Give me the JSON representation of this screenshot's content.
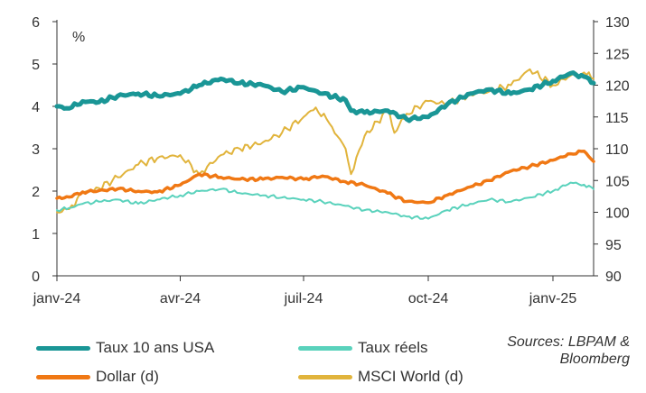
{
  "chart_data": {
    "type": "line",
    "unit_label": "%",
    "x_tick_labels": [
      "janv-24",
      "avr-24",
      "juil-24",
      "oct-24",
      "janv-25"
    ],
    "x_ticks": [
      "2024-01-01",
      "2024-04-01",
      "2024-07-01",
      "2024-10-01",
      "2025-01-01"
    ],
    "x_range": [
      "2024-01-01",
      "2025-01-31"
    ],
    "y_left_ticks": [
      "0",
      "1",
      "2",
      "3",
      "4",
      "5",
      "6"
    ],
    "y_left_range": [
      0,
      6
    ],
    "y_right_ticks": [
      "90",
      "95",
      "100",
      "105",
      "110",
      "115",
      "120",
      "125",
      "130"
    ],
    "y_right_range": [
      90,
      130
    ],
    "grid": false,
    "legend_position": "bottom",
    "series": [
      {
        "name": "Taux 10 ans USA",
        "axis": "left",
        "color": "#1a9696",
        "x": [
          "2024-01-01",
          "2024-01-10",
          "2024-01-20",
          "2024-02-01",
          "2024-02-15",
          "2024-03-01",
          "2024-03-15",
          "2024-04-01",
          "2024-04-15",
          "2024-05-01",
          "2024-05-15",
          "2024-06-01",
          "2024-06-15",
          "2024-07-01",
          "2024-07-15",
          "2024-08-01",
          "2024-08-05",
          "2024-08-15",
          "2024-09-01",
          "2024-09-15",
          "2024-10-01",
          "2024-10-15",
          "2024-11-01",
          "2024-11-15",
          "2024-12-01",
          "2024-12-15",
          "2025-01-01",
          "2025-01-14",
          "2025-01-24",
          "2025-01-31"
        ],
        "values": [
          4.0,
          3.95,
          4.12,
          4.1,
          4.25,
          4.3,
          4.25,
          4.3,
          4.5,
          4.65,
          4.55,
          4.5,
          4.35,
          4.45,
          4.3,
          4.15,
          3.9,
          3.85,
          3.9,
          3.7,
          3.75,
          4.05,
          4.3,
          4.4,
          4.3,
          4.4,
          4.6,
          4.78,
          4.7,
          4.55
        ]
      },
      {
        "name": "Taux réels",
        "axis": "left",
        "color": "#5ad2bc",
        "x": [
          "2024-01-01",
          "2024-01-10",
          "2024-01-20",
          "2024-02-01",
          "2024-02-15",
          "2024-03-01",
          "2024-03-15",
          "2024-04-01",
          "2024-04-15",
          "2024-05-01",
          "2024-05-15",
          "2024-06-01",
          "2024-06-15",
          "2024-07-01",
          "2024-07-15",
          "2024-08-01",
          "2024-08-15",
          "2024-09-01",
          "2024-09-15",
          "2024-10-01",
          "2024-10-15",
          "2024-11-01",
          "2024-11-15",
          "2024-12-01",
          "2024-12-15",
          "2025-01-01",
          "2025-01-14",
          "2025-01-24",
          "2025-01-31"
        ],
        "values": [
          1.55,
          1.6,
          1.7,
          1.75,
          1.8,
          1.7,
          1.8,
          1.9,
          2.0,
          2.05,
          1.95,
          1.9,
          1.85,
          1.8,
          1.75,
          1.65,
          1.55,
          1.5,
          1.4,
          1.35,
          1.55,
          1.7,
          1.8,
          1.75,
          1.85,
          2.0,
          2.2,
          2.15,
          2.05
        ]
      },
      {
        "name": "Dollar (d)",
        "axis": "right",
        "color": "#f07814",
        "x": [
          "2024-01-01",
          "2024-01-10",
          "2024-01-20",
          "2024-02-01",
          "2024-02-15",
          "2024-03-01",
          "2024-03-15",
          "2024-04-01",
          "2024-04-15",
          "2024-05-01",
          "2024-05-15",
          "2024-06-01",
          "2024-06-15",
          "2024-07-01",
          "2024-07-15",
          "2024-08-01",
          "2024-08-15",
          "2024-09-01",
          "2024-09-15",
          "2024-10-01",
          "2024-10-15",
          "2024-11-01",
          "2024-11-15",
          "2024-12-01",
          "2024-12-15",
          "2025-01-01",
          "2025-01-14",
          "2025-01-24",
          "2025-01-31"
        ],
        "values": [
          102.2,
          102.4,
          103.2,
          103.4,
          103.7,
          103.3,
          103.2,
          104.3,
          106.0,
          105.5,
          105.2,
          105.2,
          105.5,
          105.2,
          105.7,
          104.8,
          104.3,
          103.0,
          101.7,
          101.5,
          102.7,
          104.0,
          105.0,
          106.5,
          107.2,
          108.2,
          109.2,
          109.6,
          108.0
        ]
      },
      {
        "name": "MSCI World (d)",
        "axis": "right",
        "color": "#e1b43c",
        "x": [
          "2024-01-01",
          "2024-01-10",
          "2024-01-20",
          "2024-02-01",
          "2024-02-15",
          "2024-03-01",
          "2024-03-15",
          "2024-04-01",
          "2024-04-15",
          "2024-05-01",
          "2024-05-15",
          "2024-06-01",
          "2024-06-15",
          "2024-07-01",
          "2024-07-10",
          "2024-07-20",
          "2024-08-01",
          "2024-08-05",
          "2024-08-15",
          "2024-09-01",
          "2024-09-06",
          "2024-09-15",
          "2024-10-01",
          "2024-10-15",
          "2024-11-01",
          "2024-11-15",
          "2024-12-01",
          "2024-12-15",
          "2025-01-01",
          "2025-01-14",
          "2025-01-24",
          "2025-01-31"
        ],
        "values": [
          100.0,
          100.5,
          103.0,
          103.8,
          105.5,
          107.5,
          108.5,
          109.0,
          106.0,
          109.0,
          110.0,
          111.0,
          112.5,
          115.0,
          116.5,
          114.0,
          110.0,
          106.0,
          112.0,
          116.0,
          112.5,
          115.5,
          117.5,
          117.0,
          118.5,
          119.0,
          120.0,
          122.5,
          120.0,
          121.5,
          122.0,
          121.0
        ]
      }
    ]
  },
  "legend": {
    "items": [
      {
        "label": "Taux 10 ans USA",
        "color": "#1a9696"
      },
      {
        "label": "Taux réels",
        "color": "#5ad2bc"
      },
      {
        "label": "Dollar (d)",
        "color": "#f07814"
      },
      {
        "label": "MSCI World (d)",
        "color": "#e1b43c"
      }
    ]
  },
  "sources": {
    "line1": "Sources: LBPAM &",
    "line2": "Bloomberg"
  }
}
